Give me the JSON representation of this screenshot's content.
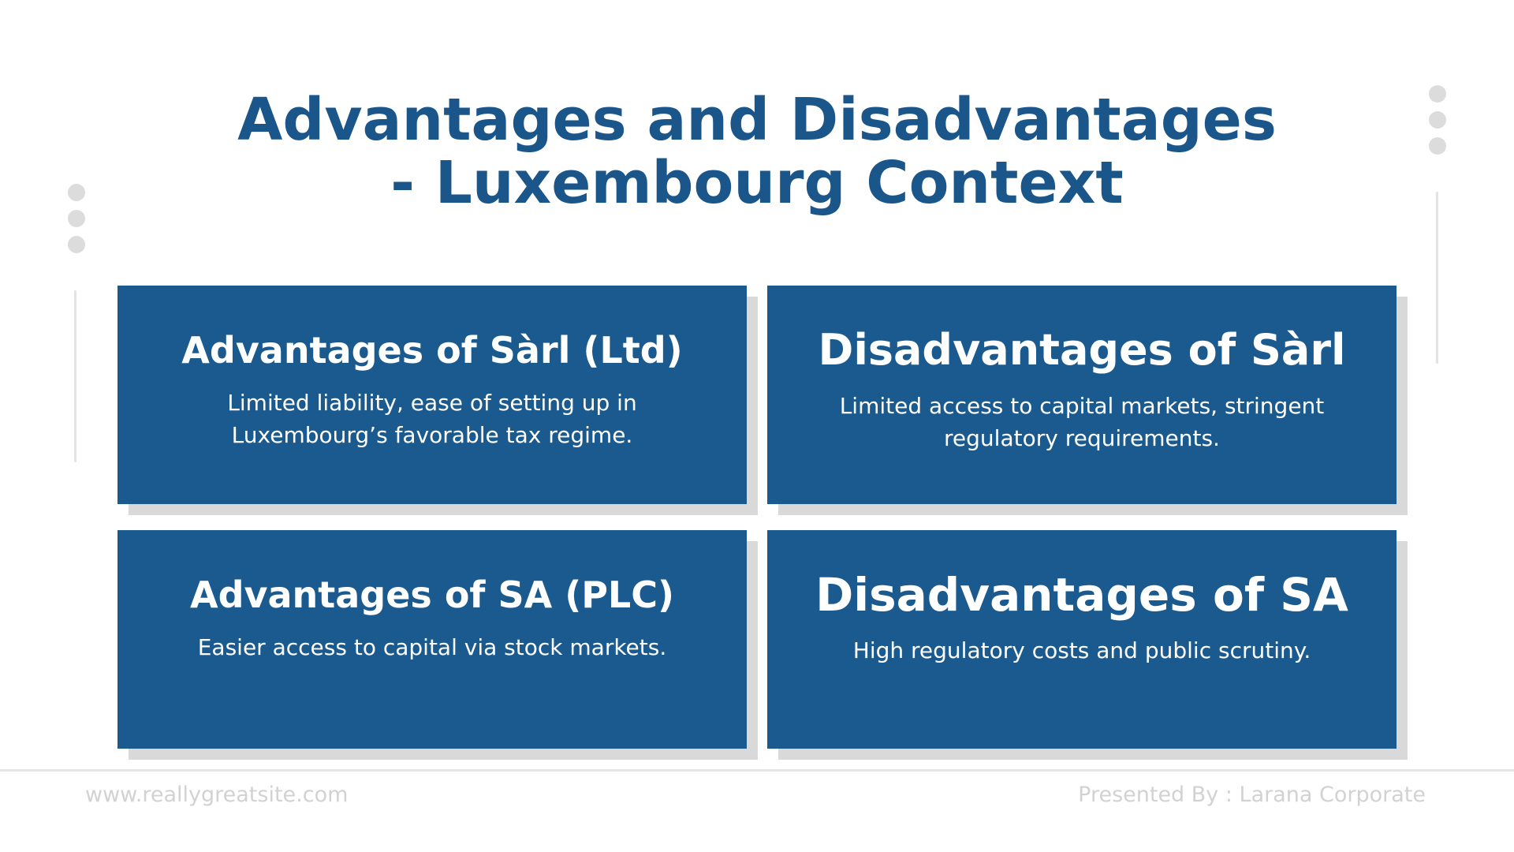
{
  "slide": {
    "title_line1": "Advantages and Disadvantages",
    "title_line2": "- Luxembourg Context"
  },
  "cards": [
    {
      "title": "Advantages of Sàrl (Ltd)",
      "body": "Limited liability, ease of setting up in Luxembourg’s favorable tax regime."
    },
    {
      "title": "Disadvantages of Sàrl",
      "body": "Limited access to capital markets, stringent regulatory requirements."
    },
    {
      "title": "Advantages of SA (PLC)",
      "body": "Easier access to capital via stock markets."
    },
    {
      "title": "Disadvantages of SA",
      "body": "High regulatory costs and public scrutiny."
    }
  ],
  "footer": {
    "website": "www.reallygreatsite.com",
    "presenter": "Presented By : Larana Corporate"
  },
  "colors": {
    "primary": "#1b568b",
    "card_background": "#1b5a8e",
    "card_shadow": "#d9d9d9",
    "footer_text": "#d2d2d2",
    "decor": "#dcdcdc"
  }
}
